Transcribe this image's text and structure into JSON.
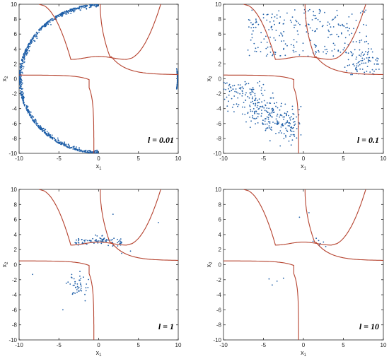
{
  "figure": {
    "curve_color": "#b5422e",
    "point_color": "#1f5fa8",
    "axis_color": "#262626"
  },
  "chart_data": [
    {
      "type": "scatter",
      "title": "",
      "xlabel": "x1",
      "ylabel": "x2",
      "annotation": "l = 0.01",
      "xlim": [
        -10,
        10
      ],
      "ylim": [
        -10,
        10
      ],
      "xticks": [
        -10,
        -5,
        0,
        5,
        10
      ],
      "yticks": [
        -10,
        -8,
        -6,
        -4,
        -2,
        0,
        2,
        4,
        6,
        8,
        10
      ],
      "grid": false,
      "legend": "none",
      "points_distribution": "dense ring along circle of radius 10, arcs from about 90° to 180° and from 180° to 270°",
      "curves": "two decision-boundary curves: a W-shaped curve in the upper half (minimum near y = 2.6 at x = ±3.5, local maximum y = 3 at x = 0) and an L-shaped curve in the lower-left quadrant asymptotic to y = 0.5 and x = -0.5"
    },
    {
      "type": "scatter",
      "title": "",
      "xlabel": "x1",
      "ylabel": "x2",
      "annotation": "l = 0.1",
      "xlim": [
        -10,
        10
      ],
      "ylim": [
        -10,
        10
      ],
      "xticks": [
        -10,
        -5,
        0,
        5,
        10
      ],
      "yticks": [
        -10,
        -8,
        -6,
        -4,
        -2,
        0,
        2,
        4,
        6,
        8,
        10
      ],
      "grid": false,
      "legend": "none",
      "points_distribution": "scattered cloud above the W-curve (x from -7 to 9, y from 1 to 9) and a diagonal band in the lower-left (x from -10 to 0, y from -8 to -0.5)"
    },
    {
      "type": "scatter",
      "title": "",
      "xlabel": "x1",
      "ylabel": "x2",
      "annotation": "l = 1",
      "xlim": [
        -10,
        10
      ],
      "ylim": [
        -10,
        10
      ],
      "xticks": [
        -10,
        -5,
        0,
        5,
        10
      ],
      "yticks": [
        -10,
        -8,
        -6,
        -4,
        -2,
        0,
        2,
        4,
        6,
        8,
        10
      ],
      "grid": false,
      "legend": "none",
      "points_distribution": "cluster hugging the W-curve near y = 3 for x from -3 to 3, a cluster near (-2, -2.5), and a few outliers"
    },
    {
      "type": "scatter",
      "title": "",
      "xlabel": "x1",
      "ylabel": "x2",
      "annotation": "l = 10",
      "xlim": [
        -10,
        10
      ],
      "ylim": [
        -10,
        10
      ],
      "xticks": [
        -10,
        -5,
        0,
        5,
        10
      ],
      "yticks": [
        -10,
        -8,
        -6,
        -4,
        -2,
        0,
        2,
        4,
        6,
        8,
        10
      ],
      "grid": false,
      "legend": "none",
      "points_distribution": "very few points: near (1 to 3, 2.5 to 3.5), near (-4, -2), and isolated points near (-0.5, 6.3) and (0.7, 6.9)"
    }
  ]
}
